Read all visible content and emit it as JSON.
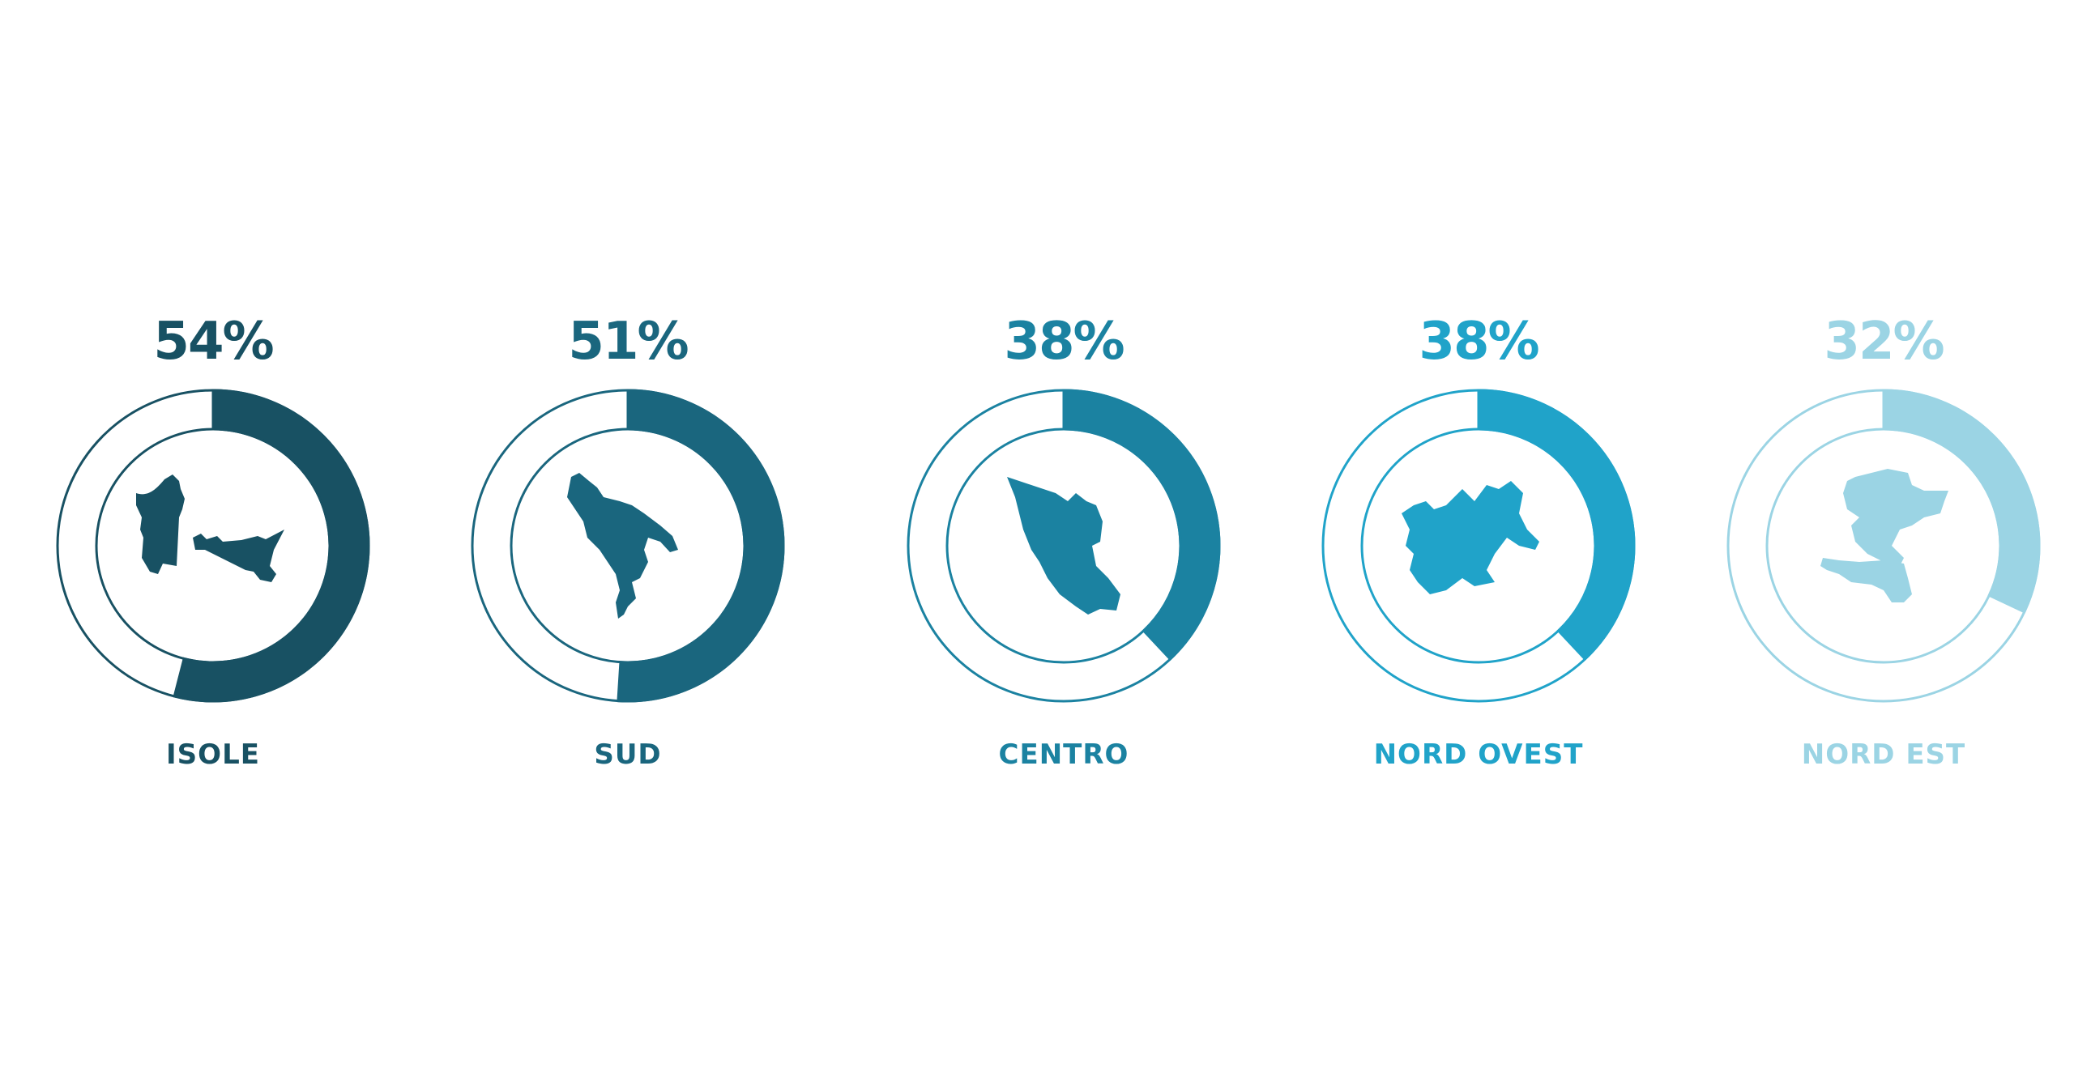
{
  "chart_data": {
    "type": "donut",
    "grid": false,
    "series": [
      {
        "name": "ISOLE",
        "value": 54,
        "label": "54%",
        "color": "#185163",
        "icon": "islands-map-icon"
      },
      {
        "name": "SUD",
        "value": 51,
        "label": "51%",
        "color": "#1a667e",
        "icon": "south-italy-map-icon"
      },
      {
        "name": "CENTRO",
        "value": 38,
        "label": "38%",
        "color": "#1b82a1",
        "icon": "central-italy-map-icon"
      },
      {
        "name": "NORD OVEST",
        "value": 38,
        "label": "38%",
        "color": "#20a3c9",
        "icon": "northwest-italy-map-icon"
      },
      {
        "name": "NORD EST",
        "value": 32,
        "label": "32%",
        "color": "#9bd4e4",
        "icon": "northeast-italy-map-icon"
      }
    ]
  }
}
